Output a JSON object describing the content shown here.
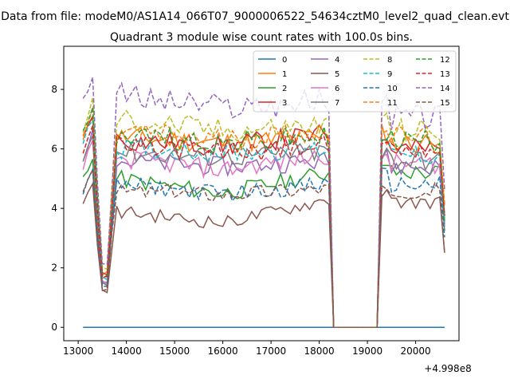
{
  "figure": {
    "suptitle": "Data from file: modeM0/AS1A14_066T07_9000006522_54634cztM0_level2_quad_clean.evt",
    "title": "Quadrant 3 module wise count rates with 100.0s bins.",
    "x_offset_label": "+4.998e8"
  },
  "chart_data": {
    "type": "line",
    "title": "Quadrant 3 module wise count rates with 100.0s bins.",
    "xlabel": "",
    "ylabel": "",
    "x_offset": 499800000,
    "xlim": [
      12700,
      20900
    ],
    "ylim": [
      -0.45,
      9.45
    ],
    "xticks": [
      13000,
      14000,
      15000,
      16000,
      17000,
      18000,
      19000,
      20000
    ],
    "yticks": [
      0,
      2,
      4,
      6,
      8
    ],
    "grid": false,
    "legend": {
      "position": "top-right",
      "columns": 4
    },
    "series_profiles": [
      {
        "name": "0",
        "color": "#1f77b4",
        "dash": "solid",
        "levels": [
          0,
          0,
          0,
          0,
          0,
          0
        ]
      },
      {
        "name": "1",
        "color": "#ff7f0e",
        "dash": "solid",
        "levels": [
          7.1,
          1.7,
          6.4,
          6.2,
          6.4,
          6.2
        ]
      },
      {
        "name": "2",
        "color": "#2ca02c",
        "dash": "solid",
        "levels": [
          5.6,
          1.5,
          5.0,
          4.5,
          5.2,
          5.2
        ]
      },
      {
        "name": "3",
        "color": "#d62728",
        "dash": "solid",
        "levels": [
          7.2,
          1.8,
          6.3,
          6.1,
          6.5,
          6.0
        ]
      },
      {
        "name": "4",
        "color": "#9467bd",
        "dash": "solid",
        "levels": [
          6.5,
          1.6,
          5.6,
          5.4,
          5.6,
          5.4
        ]
      },
      {
        "name": "5",
        "color": "#8c564b",
        "dash": "solid",
        "levels": [
          4.8,
          1.2,
          3.9,
          3.5,
          4.3,
          4.2
        ]
      },
      {
        "name": "6",
        "color": "#e377c2",
        "dash": "solid",
        "levels": [
          6.2,
          1.5,
          5.7,
          5.3,
          5.8,
          5.5
        ]
      },
      {
        "name": "7",
        "color": "#7f7f7f",
        "dash": "solid",
        "levels": [
          6.4,
          1.5,
          5.9,
          5.7,
          5.9,
          5.6
        ]
      },
      {
        "name": "8",
        "color": "#bcbd22",
        "dash": "dashed",
        "levels": [
          7.6,
          2.0,
          7.0,
          6.6,
          6.8,
          6.6
        ]
      },
      {
        "name": "9",
        "color": "#17becf",
        "dash": "dashed",
        "levels": [
          7.0,
          1.7,
          6.0,
          5.9,
          6.0,
          5.8
        ]
      },
      {
        "name": "10",
        "color": "#1f77b4",
        "dash": "dashed",
        "levels": [
          5.2,
          1.4,
          4.8,
          4.5,
          4.8,
          4.8
        ]
      },
      {
        "name": "11",
        "color": "#ff7f0e",
        "dash": "dashed",
        "levels": [
          7.3,
          1.8,
          6.6,
          6.3,
          6.6,
          6.4
        ]
      },
      {
        "name": "12",
        "color": "#2ca02c",
        "dash": "dashed",
        "levels": [
          7.3,
          1.8,
          6.5,
          6.2,
          6.4,
          6.3
        ]
      },
      {
        "name": "13",
        "color": "#d62728",
        "dash": "dashed",
        "levels": [
          6.8,
          1.7,
          6.1,
          5.9,
          6.1,
          6.0
        ]
      },
      {
        "name": "14",
        "color": "#9467bd",
        "dash": "dashed",
        "levels": [
          8.5,
          2.1,
          7.8,
          7.4,
          7.6,
          7.1
        ]
      },
      {
        "name": "15",
        "color": "#8c564b",
        "dash": "dashed",
        "levels": [
          5.3,
          1.3,
          4.6,
          4.5,
          4.7,
          4.6
        ]
      }
    ],
    "segment_x": {
      "first_x": 13100,
      "bin": 100,
      "dip_x": [
        13500,
        13600
      ],
      "rise_x": 13700,
      "saa_drop_x": 18300,
      "saa_end_x": 19200,
      "last_x": 20600
    }
  }
}
